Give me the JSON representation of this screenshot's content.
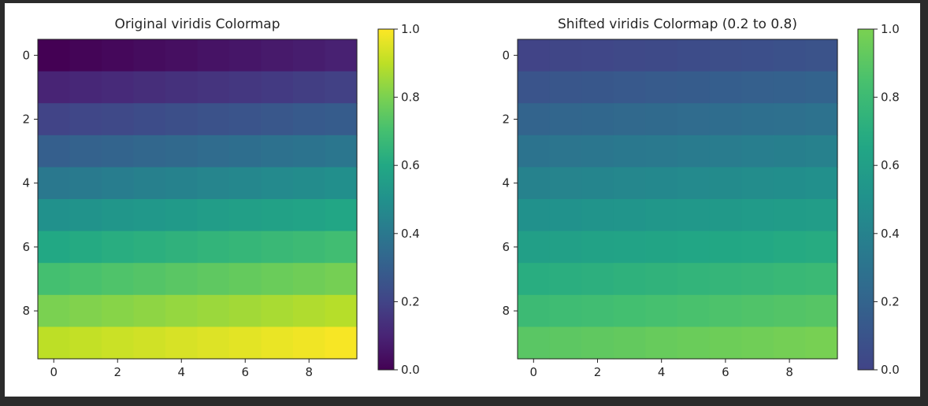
{
  "chart_data": [
    {
      "type": "heatmap",
      "title": "Original viridis Colormap",
      "colormap": "viridis",
      "rows": 10,
      "cols": 10,
      "values": [
        [
          0.0,
          0.01,
          0.02,
          0.03,
          0.04,
          0.05,
          0.06,
          0.07,
          0.08,
          0.09
        ],
        [
          0.1,
          0.11,
          0.12,
          0.13,
          0.14,
          0.15,
          0.16,
          0.17,
          0.18,
          0.19
        ],
        [
          0.2,
          0.21,
          0.22,
          0.23,
          0.24,
          0.25,
          0.26,
          0.27,
          0.28,
          0.29
        ],
        [
          0.3,
          0.31,
          0.32,
          0.33,
          0.34,
          0.35,
          0.36,
          0.37,
          0.38,
          0.39
        ],
        [
          0.4,
          0.41,
          0.42,
          0.43,
          0.44,
          0.45,
          0.46,
          0.47,
          0.48,
          0.49
        ],
        [
          0.5,
          0.51,
          0.52,
          0.53,
          0.54,
          0.55,
          0.56,
          0.57,
          0.58,
          0.59
        ],
        [
          0.6,
          0.61,
          0.62,
          0.63,
          0.64,
          0.65,
          0.66,
          0.67,
          0.68,
          0.69
        ],
        [
          0.7,
          0.71,
          0.72,
          0.73,
          0.74,
          0.75,
          0.76,
          0.77,
          0.78,
          0.79
        ],
        [
          0.8,
          0.81,
          0.82,
          0.83,
          0.84,
          0.85,
          0.86,
          0.87,
          0.88,
          0.89
        ],
        [
          0.9,
          0.91,
          0.92,
          0.93,
          0.94,
          0.95,
          0.96,
          0.97,
          0.98,
          0.99
        ]
      ],
      "xticks": [
        0,
        2,
        4,
        6,
        8
      ],
      "yticks": [
        0,
        2,
        4,
        6,
        8
      ],
      "colorbar": {
        "range": [
          0.0,
          1.0
        ],
        "ticks": [
          "0.0",
          "0.2",
          "0.4",
          "0.6",
          "0.8",
          "1.0"
        ],
        "cmap_range": [
          0.0,
          1.0
        ]
      }
    },
    {
      "type": "heatmap",
      "title": "Shifted viridis Colormap (0.2 to 0.8)",
      "colormap": "viridis shifted 0.2–0.8",
      "rows": 10,
      "cols": 10,
      "values": [
        [
          0.0,
          0.01,
          0.02,
          0.03,
          0.04,
          0.05,
          0.06,
          0.07,
          0.08,
          0.09
        ],
        [
          0.1,
          0.11,
          0.12,
          0.13,
          0.14,
          0.15,
          0.16,
          0.17,
          0.18,
          0.19
        ],
        [
          0.2,
          0.21,
          0.22,
          0.23,
          0.24,
          0.25,
          0.26,
          0.27,
          0.28,
          0.29
        ],
        [
          0.3,
          0.31,
          0.32,
          0.33,
          0.34,
          0.35,
          0.36,
          0.37,
          0.38,
          0.39
        ],
        [
          0.4,
          0.41,
          0.42,
          0.43,
          0.44,
          0.45,
          0.46,
          0.47,
          0.48,
          0.49
        ],
        [
          0.5,
          0.51,
          0.52,
          0.53,
          0.54,
          0.55,
          0.56,
          0.57,
          0.58,
          0.59
        ],
        [
          0.6,
          0.61,
          0.62,
          0.63,
          0.64,
          0.65,
          0.66,
          0.67,
          0.68,
          0.69
        ],
        [
          0.7,
          0.71,
          0.72,
          0.73,
          0.74,
          0.75,
          0.76,
          0.77,
          0.78,
          0.79
        ],
        [
          0.8,
          0.81,
          0.82,
          0.83,
          0.84,
          0.85,
          0.86,
          0.87,
          0.88,
          0.89
        ],
        [
          0.9,
          0.91,
          0.92,
          0.93,
          0.94,
          0.95,
          0.96,
          0.97,
          0.98,
          0.99
        ]
      ],
      "xticks": [
        0,
        2,
        4,
        6,
        8
      ],
      "yticks": [
        0,
        2,
        4,
        6,
        8
      ],
      "colorbar": {
        "range": [
          0.0,
          1.0
        ],
        "ticks": [
          "0.0",
          "0.2",
          "0.4",
          "0.6",
          "0.8",
          "1.0"
        ],
        "cmap_range": [
          0.2,
          0.8
        ]
      }
    }
  ]
}
